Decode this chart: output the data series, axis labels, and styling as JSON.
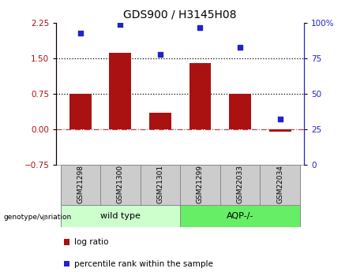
{
  "title": "GDS900 / H3145H08",
  "samples": [
    "GSM21298",
    "GSM21300",
    "GSM21301",
    "GSM21299",
    "GSM22033",
    "GSM22034"
  ],
  "log_ratio": [
    0.75,
    1.62,
    0.35,
    1.4,
    0.75,
    -0.05
  ],
  "percentile_rank": [
    93,
    99,
    78,
    97,
    83,
    32
  ],
  "groups": [
    {
      "label": "wild type",
      "indices": [
        0,
        1,
        2
      ],
      "color": "#ccffcc"
    },
    {
      "label": "AQP-/-",
      "indices": [
        3,
        4,
        5
      ],
      "color": "#66ee66"
    }
  ],
  "bar_color": "#aa1111",
  "dot_color": "#2222cc",
  "ylim_left": [
    -0.75,
    2.25
  ],
  "ylim_right": [
    0,
    100
  ],
  "yticks_left": [
    -0.75,
    0,
    0.75,
    1.5,
    2.25
  ],
  "yticks_right": [
    0,
    25,
    50,
    75,
    100
  ],
  "hlines": [
    0.75,
    1.5
  ],
  "hline_zero": 0,
  "background_color": "#ffffff",
  "label_log_ratio": "log ratio",
  "label_percentile": "percentile rank within the sample",
  "genotype_label": "genotype/variation"
}
